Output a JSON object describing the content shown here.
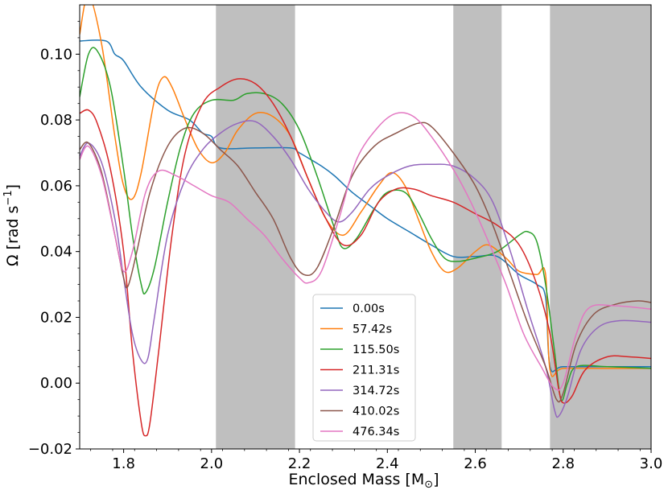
{
  "chart_data": {
    "type": "line",
    "xlabel": "Enclosed Mass [M",
    "xlabel_sub": "⊙",
    "xlabel_close": "]",
    "ylabel": "Ω [rad s",
    "ylabel_sup": "−1",
    "ylabel_close": "]",
    "xlim": [
      1.7,
      3.0
    ],
    "ylim": [
      -0.02,
      0.115
    ],
    "xticks": [
      1.8,
      2.0,
      2.2,
      2.4,
      2.6,
      2.8,
      3.0
    ],
    "xtick_labels": [
      "1.8",
      "2.0",
      "2.2",
      "2.4",
      "2.6",
      "2.8",
      "3.0"
    ],
    "yticks": [
      -0.02,
      0.0,
      0.02,
      0.04,
      0.06,
      0.08,
      0.1
    ],
    "ytick_labels": [
      "−0.02",
      "0.00",
      "0.02",
      "0.04",
      "0.06",
      "0.08",
      "0.10"
    ],
    "grid": false,
    "legend_position": "lower-center",
    "shaded_bands": [
      [
        2.01,
        2.19
      ],
      [
        2.55,
        2.66
      ],
      [
        2.77,
        3.0
      ]
    ],
    "shade_color": "#bfbfbf",
    "series": [
      {
        "name": "0.00s",
        "color": "#1f77b4",
        "points": [
          [
            1.7,
            0.104
          ],
          [
            1.76,
            0.104
          ],
          [
            1.78,
            0.1
          ],
          [
            1.8,
            0.098
          ],
          [
            1.84,
            0.09
          ],
          [
            1.9,
            0.083
          ],
          [
            1.95,
            0.08
          ],
          [
            1.98,
            0.076
          ],
          [
            2.0,
            0.075
          ],
          [
            2.02,
            0.0715
          ],
          [
            2.1,
            0.0715
          ],
          [
            2.18,
            0.0715
          ],
          [
            2.2,
            0.07
          ],
          [
            2.25,
            0.066
          ],
          [
            2.28,
            0.063
          ],
          [
            2.32,
            0.058
          ],
          [
            2.36,
            0.054
          ],
          [
            2.4,
            0.05
          ],
          [
            2.45,
            0.046
          ],
          [
            2.5,
            0.042
          ],
          [
            2.55,
            0.0385
          ],
          [
            2.6,
            0.0385
          ],
          [
            2.65,
            0.0385
          ],
          [
            2.7,
            0.033
          ],
          [
            2.74,
            0.03
          ],
          [
            2.76,
            0.026
          ],
          [
            2.77,
            0.005
          ],
          [
            2.8,
            0.005
          ],
          [
            2.9,
            0.005
          ],
          [
            3.0,
            0.005
          ]
        ]
      },
      {
        "name": "57.42s",
        "color": "#ff7f0e",
        "points": [
          [
            1.7,
            0.106
          ],
          [
            1.72,
            0.118
          ],
          [
            1.75,
            0.103
          ],
          [
            1.78,
            0.075
          ],
          [
            1.8,
            0.06
          ],
          [
            1.82,
            0.056
          ],
          [
            1.84,
            0.064
          ],
          [
            1.87,
            0.086
          ],
          [
            1.89,
            0.093
          ],
          [
            1.91,
            0.09
          ],
          [
            1.94,
            0.08
          ],
          [
            1.97,
            0.071
          ],
          [
            2.0,
            0.067
          ],
          [
            2.03,
            0.07
          ],
          [
            2.06,
            0.077
          ],
          [
            2.1,
            0.082
          ],
          [
            2.14,
            0.081
          ],
          [
            2.18,
            0.075
          ],
          [
            2.22,
            0.062
          ],
          [
            2.26,
            0.05
          ],
          [
            2.3,
            0.045
          ],
          [
            2.34,
            0.052
          ],
          [
            2.38,
            0.06
          ],
          [
            2.41,
            0.064
          ],
          [
            2.44,
            0.06
          ],
          [
            2.47,
            0.05
          ],
          [
            2.5,
            0.04
          ],
          [
            2.53,
            0.034
          ],
          [
            2.56,
            0.035
          ],
          [
            2.6,
            0.04
          ],
          [
            2.63,
            0.042
          ],
          [
            2.67,
            0.038
          ],
          [
            2.7,
            0.034
          ],
          [
            2.74,
            0.033
          ],
          [
            2.76,
            0.033
          ],
          [
            2.77,
            0.004
          ],
          [
            2.8,
            0.0045
          ],
          [
            2.9,
            0.0045
          ],
          [
            3.0,
            0.0045
          ]
        ]
      },
      {
        "name": "115.50s",
        "color": "#2ca02c",
        "points": [
          [
            1.7,
            0.087
          ],
          [
            1.72,
            0.1
          ],
          [
            1.74,
            0.101
          ],
          [
            1.77,
            0.09
          ],
          [
            1.8,
            0.065
          ],
          [
            1.82,
            0.045
          ],
          [
            1.84,
            0.03
          ],
          [
            1.85,
            0.0275
          ],
          [
            1.87,
            0.035
          ],
          [
            1.9,
            0.055
          ],
          [
            1.93,
            0.072
          ],
          [
            1.96,
            0.082
          ],
          [
            2.0,
            0.086
          ],
          [
            2.05,
            0.086
          ],
          [
            2.08,
            0.088
          ],
          [
            2.12,
            0.088
          ],
          [
            2.16,
            0.085
          ],
          [
            2.2,
            0.077
          ],
          [
            2.24,
            0.063
          ],
          [
            2.28,
            0.047
          ],
          [
            2.3,
            0.041
          ],
          [
            2.33,
            0.044
          ],
          [
            2.37,
            0.053
          ],
          [
            2.4,
            0.058
          ],
          [
            2.44,
            0.058
          ],
          [
            2.47,
            0.052
          ],
          [
            2.5,
            0.044
          ],
          [
            2.53,
            0.038
          ],
          [
            2.56,
            0.037
          ],
          [
            2.6,
            0.038
          ],
          [
            2.65,
            0.04
          ],
          [
            2.7,
            0.045
          ],
          [
            2.72,
            0.046
          ],
          [
            2.74,
            0.043
          ],
          [
            2.76,
            0.03
          ],
          [
            2.78,
            0.01
          ],
          [
            2.795,
            -0.005
          ],
          [
            2.81,
            0.0
          ],
          [
            2.83,
            0.005
          ],
          [
            2.9,
            0.005
          ],
          [
            3.0,
            0.0045
          ]
        ]
      },
      {
        "name": "211.31s",
        "color": "#d62728",
        "points": [
          [
            1.7,
            0.082
          ],
          [
            1.72,
            0.083
          ],
          [
            1.74,
            0.079
          ],
          [
            1.77,
            0.065
          ],
          [
            1.8,
            0.04
          ],
          [
            1.82,
            0.01
          ],
          [
            1.84,
            -0.012
          ],
          [
            1.85,
            -0.016
          ],
          [
            1.86,
            -0.012
          ],
          [
            1.88,
            0.01
          ],
          [
            1.91,
            0.045
          ],
          [
            1.94,
            0.07
          ],
          [
            1.98,
            0.085
          ],
          [
            2.02,
            0.09
          ],
          [
            2.06,
            0.0925
          ],
          [
            2.1,
            0.091
          ],
          [
            2.14,
            0.085
          ],
          [
            2.18,
            0.075
          ],
          [
            2.22,
            0.062
          ],
          [
            2.26,
            0.05
          ],
          [
            2.3,
            0.042
          ],
          [
            2.34,
            0.045
          ],
          [
            2.38,
            0.055
          ],
          [
            2.42,
            0.059
          ],
          [
            2.46,
            0.059
          ],
          [
            2.5,
            0.057
          ],
          [
            2.55,
            0.055
          ],
          [
            2.6,
            0.0515
          ],
          [
            2.65,
            0.048
          ],
          [
            2.7,
            0.042
          ],
          [
            2.74,
            0.03
          ],
          [
            2.77,
            0.015
          ],
          [
            2.79,
            -0.002
          ],
          [
            2.8,
            -0.006
          ],
          [
            2.82,
            -0.004
          ],
          [
            2.85,
            0.004
          ],
          [
            2.9,
            0.008
          ],
          [
            2.95,
            0.008
          ],
          [
            3.0,
            0.0075
          ]
        ]
      },
      {
        "name": "314.72s",
        "color": "#9467bd",
        "points": [
          [
            1.7,
            0.069
          ],
          [
            1.72,
            0.073
          ],
          [
            1.75,
            0.067
          ],
          [
            1.78,
            0.05
          ],
          [
            1.8,
            0.032
          ],
          [
            1.82,
            0.015
          ],
          [
            1.84,
            0.007
          ],
          [
            1.855,
            0.0075
          ],
          [
            1.87,
            0.02
          ],
          [
            1.9,
            0.045
          ],
          [
            1.94,
            0.062
          ],
          [
            1.98,
            0.071
          ],
          [
            2.02,
            0.076
          ],
          [
            2.06,
            0.079
          ],
          [
            2.1,
            0.0795
          ],
          [
            2.14,
            0.075
          ],
          [
            2.18,
            0.068
          ],
          [
            2.22,
            0.059
          ],
          [
            2.26,
            0.052
          ],
          [
            2.29,
            0.049
          ],
          [
            2.32,
            0.052
          ],
          [
            2.36,
            0.059
          ],
          [
            2.4,
            0.063
          ],
          [
            2.45,
            0.066
          ],
          [
            2.5,
            0.0665
          ],
          [
            2.55,
            0.066
          ],
          [
            2.6,
            0.062
          ],
          [
            2.64,
            0.055
          ],
          [
            2.68,
            0.04
          ],
          [
            2.72,
            0.022
          ],
          [
            2.76,
            0.005
          ],
          [
            2.78,
            -0.008
          ],
          [
            2.79,
            -0.01
          ],
          [
            2.81,
            -0.004
          ],
          [
            2.84,
            0.01
          ],
          [
            2.88,
            0.017
          ],
          [
            2.93,
            0.019
          ],
          [
            3.0,
            0.0185
          ]
        ]
      },
      {
        "name": "410.02s",
        "color": "#8c564b",
        "points": [
          [
            1.7,
            0.071
          ],
          [
            1.72,
            0.073
          ],
          [
            1.75,
            0.064
          ],
          [
            1.78,
            0.045
          ],
          [
            1.8,
            0.032
          ],
          [
            1.81,
            0.0295
          ],
          [
            1.83,
            0.04
          ],
          [
            1.86,
            0.058
          ],
          [
            1.9,
            0.072
          ],
          [
            1.94,
            0.0775
          ],
          [
            1.98,
            0.076
          ],
          [
            2.02,
            0.071
          ],
          [
            2.06,
            0.066
          ],
          [
            2.1,
            0.058
          ],
          [
            2.14,
            0.05
          ],
          [
            2.18,
            0.038
          ],
          [
            2.21,
            0.033
          ],
          [
            2.24,
            0.035
          ],
          [
            2.28,
            0.048
          ],
          [
            2.32,
            0.063
          ],
          [
            2.37,
            0.072
          ],
          [
            2.42,
            0.076
          ],
          [
            2.47,
            0.079
          ],
          [
            2.5,
            0.078
          ],
          [
            2.55,
            0.07
          ],
          [
            2.6,
            0.06
          ],
          [
            2.64,
            0.048
          ],
          [
            2.68,
            0.033
          ],
          [
            2.72,
            0.018
          ],
          [
            2.76,
            0.005
          ],
          [
            2.785,
            -0.005
          ],
          [
            2.8,
            -0.003
          ],
          [
            2.83,
            0.012
          ],
          [
            2.87,
            0.021
          ],
          [
            2.92,
            0.024
          ],
          [
            2.97,
            0.025
          ],
          [
            3.0,
            0.0245
          ]
        ]
      },
      {
        "name": "476.34s",
        "color": "#e377c2",
        "points": [
          [
            1.7,
            0.068
          ],
          [
            1.72,
            0.072
          ],
          [
            1.75,
            0.063
          ],
          [
            1.78,
            0.045
          ],
          [
            1.8,
            0.034
          ],
          [
            1.82,
            0.04
          ],
          [
            1.85,
            0.058
          ],
          [
            1.88,
            0.0645
          ],
          [
            1.92,
            0.063
          ],
          [
            1.96,
            0.06
          ],
          [
            2.0,
            0.057
          ],
          [
            2.04,
            0.055
          ],
          [
            2.08,
            0.05
          ],
          [
            2.12,
            0.045
          ],
          [
            2.16,
            0.038
          ],
          [
            2.2,
            0.032
          ],
          [
            2.22,
            0.0305
          ],
          [
            2.25,
            0.034
          ],
          [
            2.29,
            0.05
          ],
          [
            2.33,
            0.068
          ],
          [
            2.38,
            0.078
          ],
          [
            2.42,
            0.082
          ],
          [
            2.46,
            0.081
          ],
          [
            2.5,
            0.075
          ],
          [
            2.55,
            0.065
          ],
          [
            2.59,
            0.055
          ],
          [
            2.63,
            0.043
          ],
          [
            2.67,
            0.03
          ],
          [
            2.71,
            0.015
          ],
          [
            2.75,
            0.005
          ],
          [
            2.78,
            -0.0015
          ],
          [
            2.8,
            0.0
          ],
          [
            2.83,
            0.015
          ],
          [
            2.86,
            0.023
          ],
          [
            2.92,
            0.0235
          ],
          [
            3.0,
            0.0225
          ]
        ]
      }
    ]
  }
}
